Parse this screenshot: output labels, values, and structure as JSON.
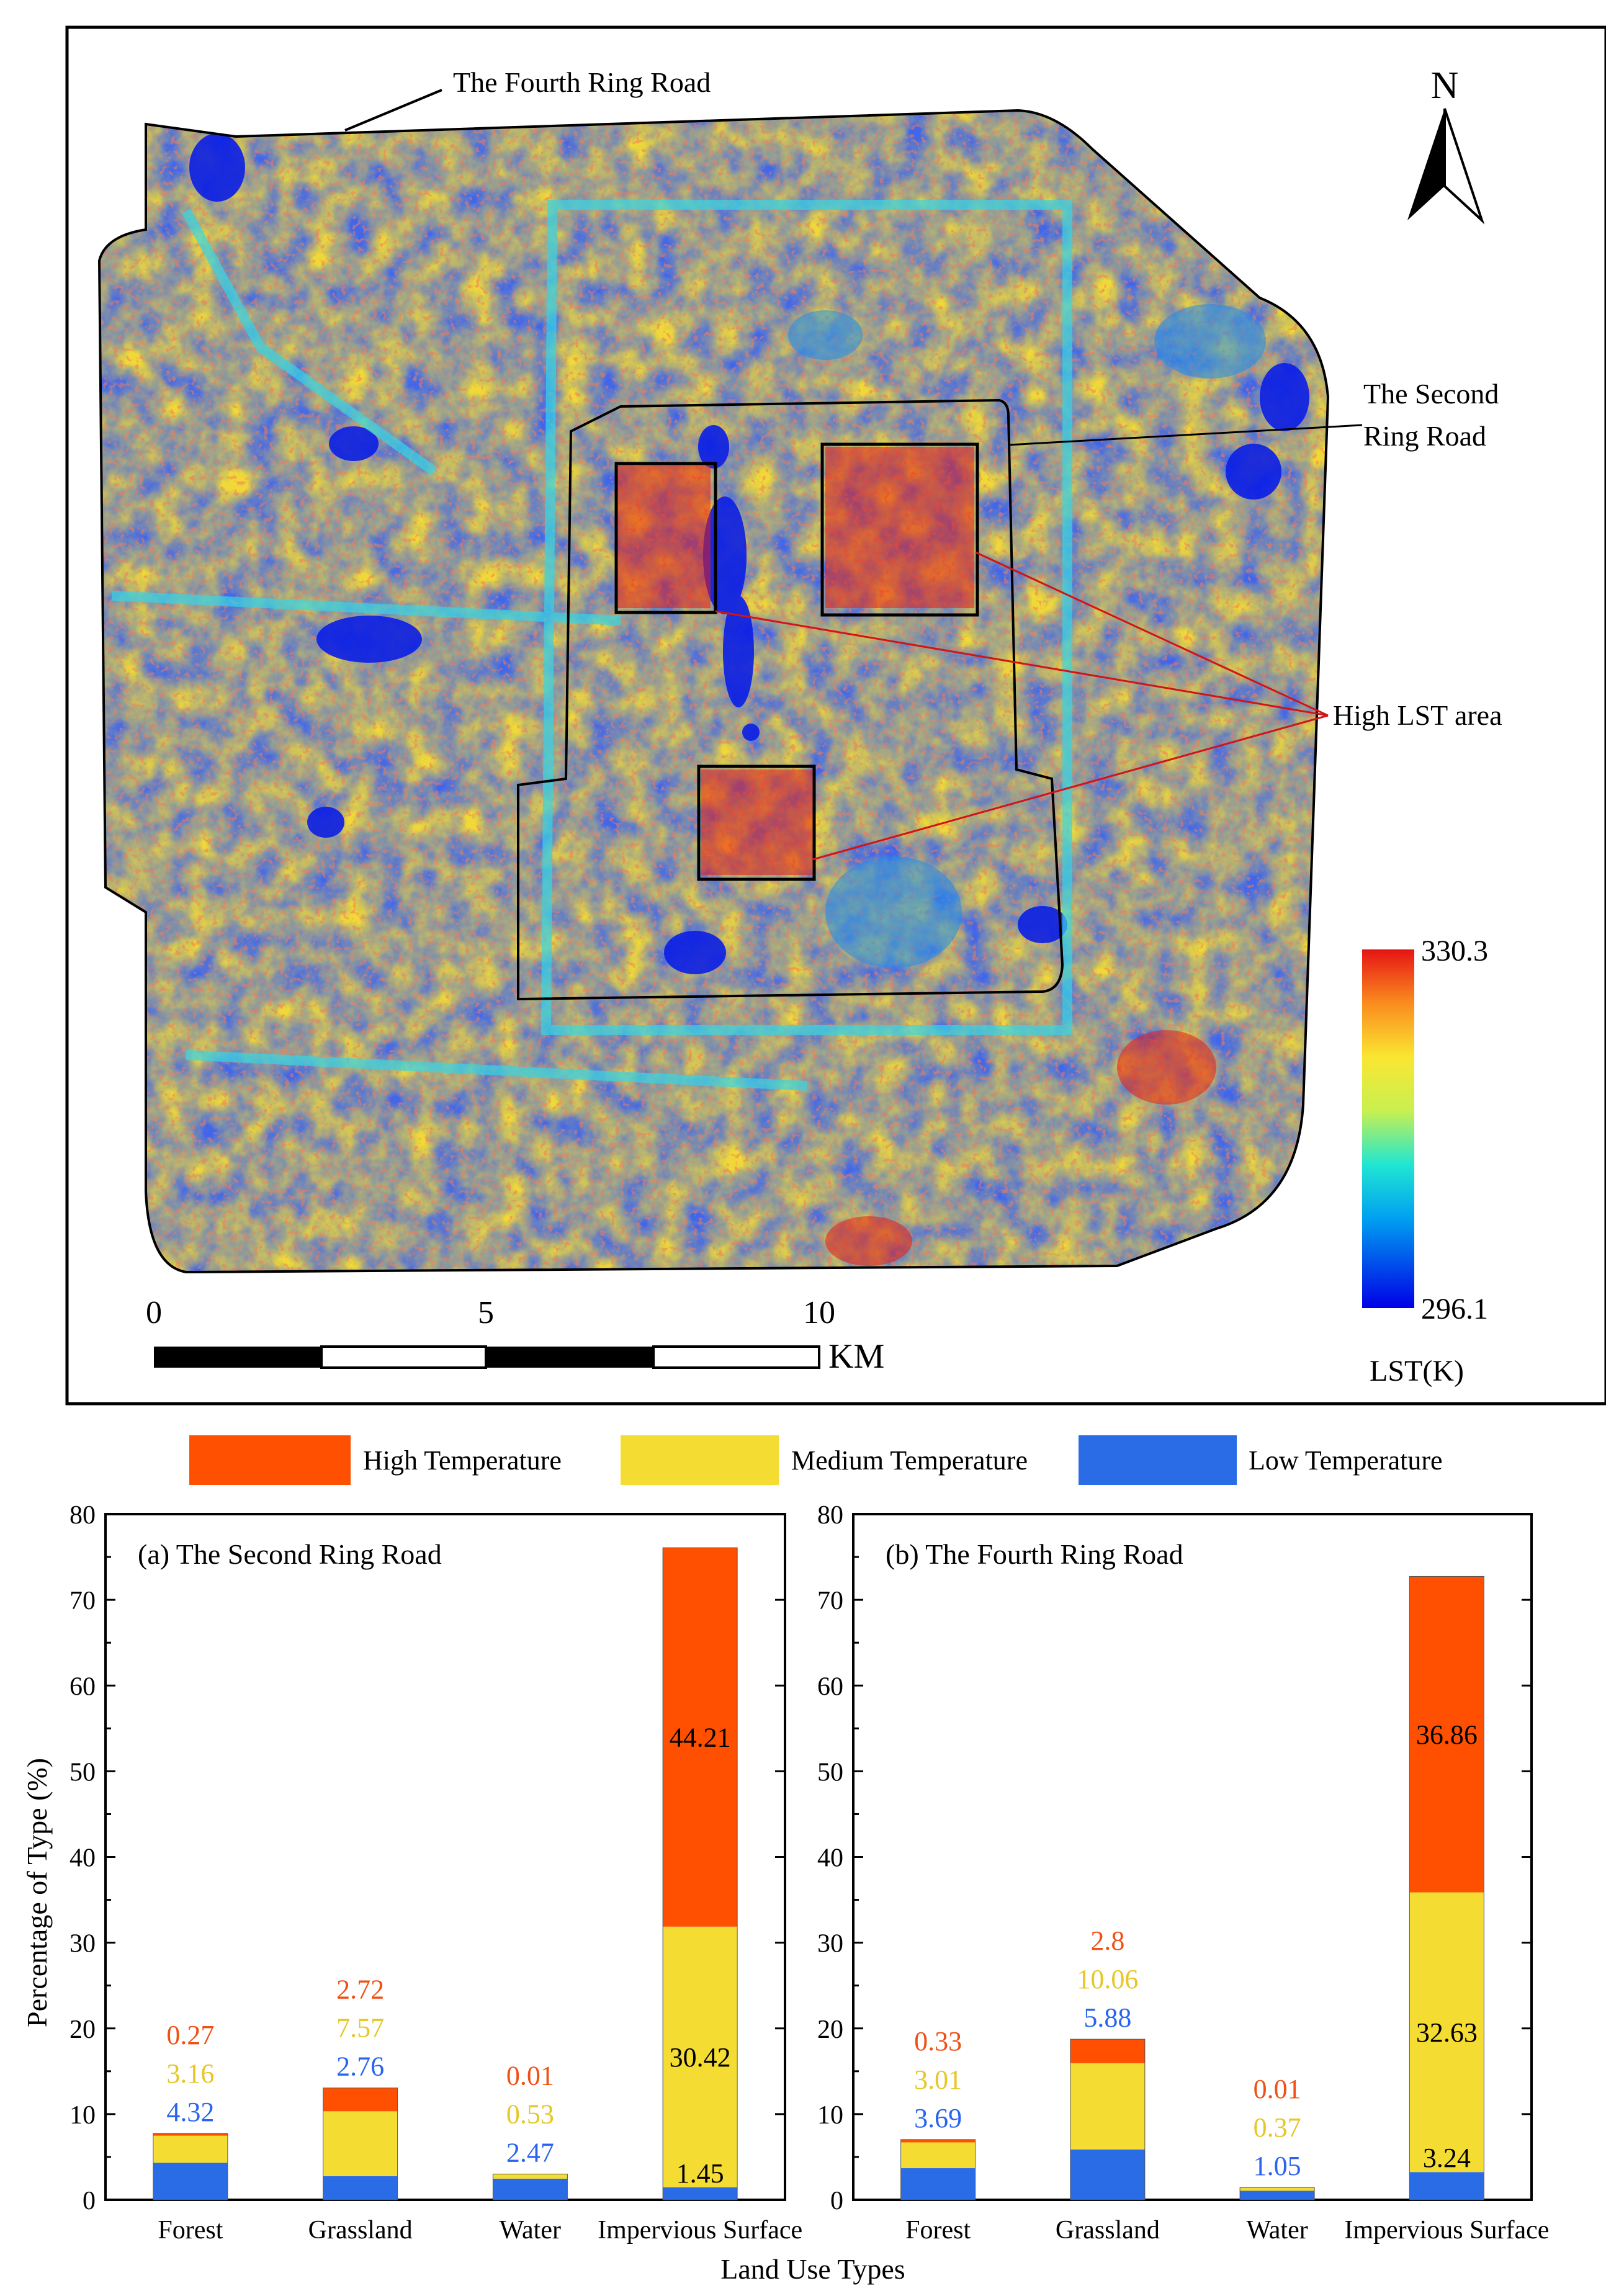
{
  "map": {
    "labels": {
      "fourth_ring": "The Fourth Ring Road",
      "second_ring_line1": "The Second",
      "second_ring_line2": "Ring Road",
      "high_lst": "High LST area",
      "north": "N"
    },
    "scale_bar": {
      "ticks": [
        "0",
        "5",
        "10"
      ],
      "unit": "KM"
    },
    "colorbar": {
      "max": "330.3",
      "min": "296.1",
      "title": "LST(K)"
    },
    "colors": {
      "low": "#0a1ee6",
      "mid": "#f2e830",
      "high": "#e61e14",
      "cyan": "#36d6e6"
    }
  },
  "legend": {
    "items": [
      {
        "label": "High Temperature",
        "color": "#fe5000"
      },
      {
        "label": "Medium Temperature",
        "color": "#f5dc32"
      },
      {
        "label": "Low Temperature",
        "color": "#2a6be6"
      }
    ]
  },
  "chart_data": [
    {
      "type": "bar",
      "stacked": true,
      "title": "(a) The Second Ring Road",
      "xlabel": "Land Use Types",
      "ylabel": "Percentage of Type (%)",
      "ylim": [
        0,
        80
      ],
      "yticks": [
        0,
        10,
        20,
        30,
        40,
        50,
        60,
        70,
        80
      ],
      "categories": [
        "Forest",
        "Grassland",
        "Water",
        "Impervious Surface"
      ],
      "series": [
        {
          "name": "Low Temperature",
          "values": [
            4.32,
            2.76,
            2.47,
            1.45
          ]
        },
        {
          "name": "Medium Temperature",
          "values": [
            3.16,
            7.57,
            0.53,
            30.42
          ]
        },
        {
          "name": "High Temperature",
          "values": [
            0.27,
            2.72,
            0.01,
            44.21
          ]
        }
      ]
    },
    {
      "type": "bar",
      "stacked": true,
      "title": "(b) The Fourth Ring Road",
      "xlabel": "Land Use Types",
      "ylabel": "Percentage of Type (%)",
      "ylim": [
        0,
        80
      ],
      "yticks": [
        0,
        10,
        20,
        30,
        40,
        50,
        60,
        70,
        80
      ],
      "categories": [
        "Forest",
        "Grassland",
        "Water",
        "Impervious Surface"
      ],
      "series": [
        {
          "name": "Low Temperature",
          "values": [
            3.69,
            5.88,
            1.05,
            3.24
          ]
        },
        {
          "name": "Medium Temperature",
          "values": [
            3.01,
            10.06,
            0.37,
            32.63
          ]
        },
        {
          "name": "High Temperature",
          "values": [
            0.33,
            2.8,
            0.01,
            36.86
          ]
        }
      ]
    }
  ]
}
